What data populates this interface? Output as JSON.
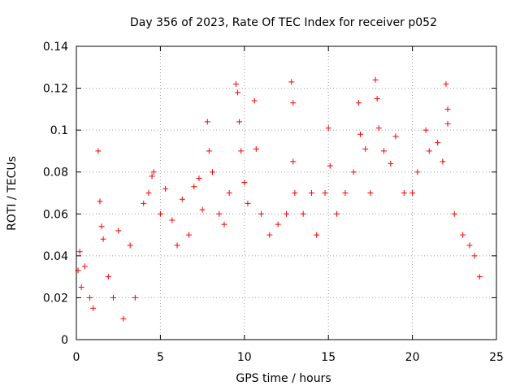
{
  "chart_data": {
    "type": "scatter",
    "title": "Day 356 of 2023, Rate Of TEC Index for receiver p052",
    "xlabel": "GPS time / hours",
    "ylabel": "ROTI / TECUs",
    "xlim": [
      0,
      25
    ],
    "ylim": [
      0,
      0.14
    ],
    "x_ticks": [
      "0",
      "5",
      "10",
      "15",
      "20",
      "25"
    ],
    "y_ticks": [
      "0",
      "0.02",
      "0.04",
      "0.06",
      "0.08",
      "0.1",
      "0.12",
      "0.14"
    ],
    "x_tick_values": [
      0,
      5,
      10,
      15,
      20,
      25
    ],
    "y_tick_values": [
      0,
      0.02,
      0.04,
      0.06,
      0.08,
      0.1,
      0.12,
      0.14
    ],
    "grid": true,
    "marker": "+",
    "series_color": "#ff0000",
    "series": [
      {
        "points": [
          [
            0.1,
            0.033
          ],
          [
            0.2,
            0.042
          ],
          [
            0.3,
            0.025
          ],
          [
            0.5,
            0.035
          ],
          [
            0.8,
            0.02
          ],
          [
            1.0,
            0.015
          ],
          [
            1.3,
            0.09
          ],
          [
            1.4,
            0.066
          ],
          [
            1.5,
            0.054
          ],
          [
            1.6,
            0.048
          ],
          [
            1.9,
            0.03
          ],
          [
            2.2,
            0.02
          ],
          [
            2.5,
            0.052
          ],
          [
            2.8,
            0.01
          ],
          [
            3.2,
            0.045
          ],
          [
            3.5,
            0.02
          ],
          [
            4.0,
            0.065
          ],
          [
            4.3,
            0.07
          ],
          [
            4.5,
            0.078
          ],
          [
            4.6,
            0.08
          ],
          [
            5.0,
            0.06
          ],
          [
            5.3,
            0.072
          ],
          [
            5.7,
            0.057
          ],
          [
            6.0,
            0.045
          ],
          [
            6.3,
            0.067
          ],
          [
            6.7,
            0.05
          ],
          [
            7.0,
            0.073
          ],
          [
            7.3,
            0.077
          ],
          [
            7.5,
            0.062
          ],
          [
            7.8,
            0.104
          ],
          [
            7.9,
            0.09
          ],
          [
            8.1,
            0.08
          ],
          [
            8.5,
            0.06
          ],
          [
            8.8,
            0.055
          ],
          [
            9.1,
            0.07
          ],
          [
            9.5,
            0.122
          ],
          [
            9.6,
            0.118
          ],
          [
            9.7,
            0.104
          ],
          [
            9.8,
            0.09
          ],
          [
            10.0,
            0.075
          ],
          [
            10.2,
            0.065
          ],
          [
            10.6,
            0.114
          ],
          [
            10.7,
            0.091
          ],
          [
            11.0,
            0.06
          ],
          [
            11.5,
            0.05
          ],
          [
            12.0,
            0.055
          ],
          [
            12.5,
            0.06
          ],
          [
            12.8,
            0.123
          ],
          [
            12.9,
            0.113
          ],
          [
            12.9,
            0.085
          ],
          [
            13.0,
            0.07
          ],
          [
            13.5,
            0.06
          ],
          [
            14.0,
            0.07
          ],
          [
            14.3,
            0.05
          ],
          [
            14.8,
            0.07
          ],
          [
            15.0,
            0.101
          ],
          [
            15.1,
            0.083
          ],
          [
            15.5,
            0.06
          ],
          [
            16.0,
            0.07
          ],
          [
            16.5,
            0.08
          ],
          [
            16.8,
            0.113
          ],
          [
            16.9,
            0.098
          ],
          [
            17.2,
            0.091
          ],
          [
            17.5,
            0.07
          ],
          [
            17.8,
            0.124
          ],
          [
            17.9,
            0.115
          ],
          [
            18.0,
            0.101
          ],
          [
            18.3,
            0.09
          ],
          [
            18.7,
            0.084
          ],
          [
            19.0,
            0.097
          ],
          [
            19.5,
            0.07
          ],
          [
            20.0,
            0.07
          ],
          [
            20.3,
            0.08
          ],
          [
            20.8,
            0.1
          ],
          [
            21.0,
            0.09
          ],
          [
            21.5,
            0.094
          ],
          [
            21.8,
            0.085
          ],
          [
            22.0,
            0.122
          ],
          [
            22.1,
            0.11
          ],
          [
            22.1,
            0.103
          ],
          [
            22.5,
            0.06
          ],
          [
            23.0,
            0.05
          ],
          [
            23.4,
            0.045
          ],
          [
            23.7,
            0.04
          ],
          [
            24.0,
            0.03
          ]
        ]
      }
    ]
  }
}
